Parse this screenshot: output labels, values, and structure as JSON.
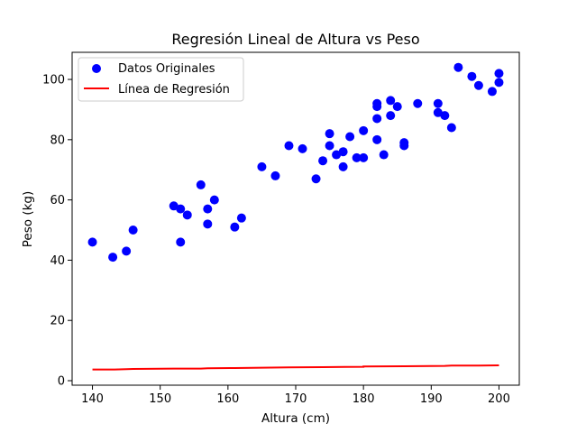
{
  "chart_data": {
    "type": "scatter",
    "title": "Regresión Lineal de Altura vs Peso",
    "xlabel": "Altura (cm)",
    "ylabel": "Peso (kg)",
    "xlim": [
      137,
      203
    ],
    "ylim": [
      -1.5,
      109
    ],
    "xticks": [
      140,
      150,
      160,
      170,
      180,
      190,
      200
    ],
    "yticks": [
      0,
      20,
      40,
      60,
      80,
      100
    ],
    "grid": false,
    "legend": {
      "placement": "top-left",
      "entries": [
        {
          "label": "Datos Originales",
          "kind": "marker",
          "color": "#0000ff"
        },
        {
          "label": "Línea de Regresión",
          "kind": "line",
          "color": "#ff0000"
        }
      ]
    },
    "series": [
      {
        "name": "Datos Originales",
        "kind": "scatter",
        "color": "#0000ff",
        "points": [
          [
            140,
            46
          ],
          [
            143,
            41
          ],
          [
            145,
            43
          ],
          [
            146,
            50
          ],
          [
            152,
            58
          ],
          [
            153,
            57
          ],
          [
            153,
            46
          ],
          [
            154,
            55
          ],
          [
            156,
            65
          ],
          [
            157,
            57
          ],
          [
            157,
            52
          ],
          [
            158,
            60
          ],
          [
            161,
            51
          ],
          [
            162,
            54
          ],
          [
            165,
            71
          ],
          [
            167,
            68
          ],
          [
            169,
            78
          ],
          [
            171,
            77
          ],
          [
            173,
            67
          ],
          [
            174,
            73
          ],
          [
            175,
            82
          ],
          [
            175,
            78
          ],
          [
            176,
            75
          ],
          [
            177,
            76
          ],
          [
            177,
            71
          ],
          [
            178,
            81
          ],
          [
            179,
            74
          ],
          [
            180,
            83
          ],
          [
            180,
            74
          ],
          [
            182,
            92
          ],
          [
            182,
            91
          ],
          [
            182,
            87
          ],
          [
            182,
            80
          ],
          [
            183,
            75
          ],
          [
            184,
            93
          ],
          [
            184,
            88
          ],
          [
            185,
            91
          ],
          [
            186,
            79
          ],
          [
            186,
            78
          ],
          [
            188,
            92
          ],
          [
            191,
            92
          ],
          [
            191,
            89
          ],
          [
            192,
            88
          ],
          [
            193,
            84
          ],
          [
            194,
            104
          ],
          [
            196,
            101
          ],
          [
            197,
            98
          ],
          [
            199,
            96
          ],
          [
            200,
            102
          ],
          [
            200,
            99
          ]
        ]
      },
      {
        "name": "Línea de Regresión",
        "kind": "line",
        "color": "#ff0000",
        "points": [
          [
            140,
            3.7
          ],
          [
            143,
            3.7
          ],
          [
            145,
            3.8
          ],
          [
            146,
            3.9
          ],
          [
            152,
            4.0
          ],
          [
            156,
            4.0
          ],
          [
            157,
            4.1
          ],
          [
            161,
            4.2
          ],
          [
            165,
            4.3
          ],
          [
            169,
            4.4
          ],
          [
            174,
            4.5
          ],
          [
            180,
            4.6
          ],
          [
            180,
            4.7
          ],
          [
            186,
            4.8
          ],
          [
            192,
            4.9
          ],
          [
            193,
            5.0
          ],
          [
            197,
            5.0
          ],
          [
            200,
            5.1
          ]
        ]
      }
    ]
  }
}
